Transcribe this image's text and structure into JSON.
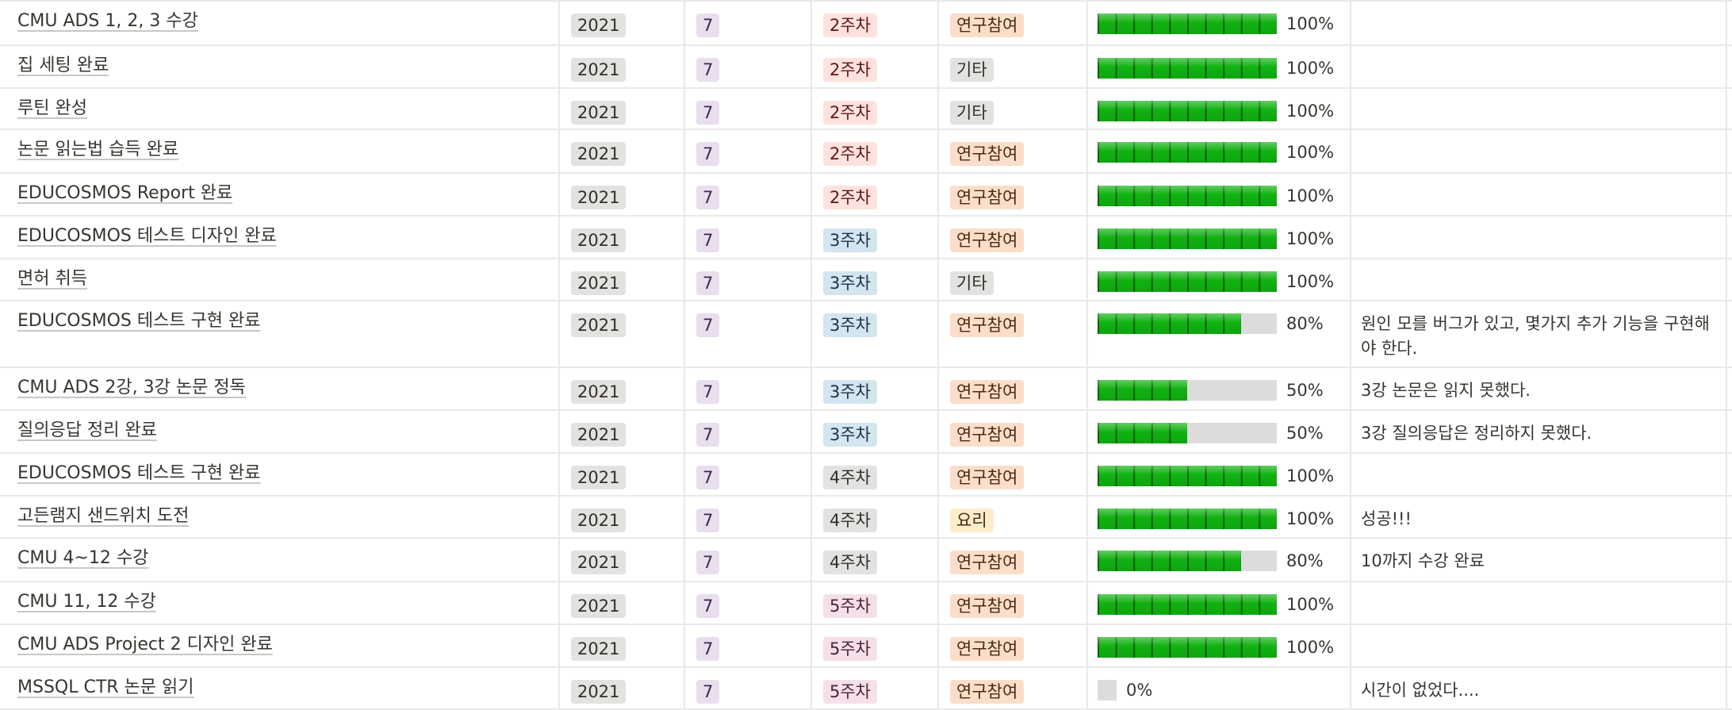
{
  "table": {
    "rows": [
      {
        "name": "CMU ADS 1, 2, 3 수강",
        "year": "2021",
        "month": "7",
        "week": "2주차",
        "category": "연구참여",
        "progress": 100,
        "progress_label": "100%",
        "memo": ""
      },
      {
        "name": "집 세팅 완료",
        "year": "2021",
        "month": "7",
        "week": "2주차",
        "category": "기타",
        "progress": 100,
        "progress_label": "100%",
        "memo": ""
      },
      {
        "name": "루틴 완성",
        "year": "2021",
        "month": "7",
        "week": "2주차",
        "category": "기타",
        "progress": 100,
        "progress_label": "100%",
        "memo": ""
      },
      {
        "name": "논문 읽는법 습득 완료",
        "year": "2021",
        "month": "7",
        "week": "2주차",
        "category": "연구참여",
        "progress": 100,
        "progress_label": "100%",
        "memo": ""
      },
      {
        "name": "EDUCOSMOS Report 완료",
        "year": "2021",
        "month": "7",
        "week": "2주차",
        "category": "연구참여",
        "progress": 100,
        "progress_label": "100%",
        "memo": ""
      },
      {
        "name": "EDUCOSMOS 테스트 디자인 완료",
        "year": "2021",
        "month": "7",
        "week": "3주차",
        "category": "연구참여",
        "progress": 100,
        "progress_label": "100%",
        "memo": ""
      },
      {
        "name": "면허 취득",
        "year": "2021",
        "month": "7",
        "week": "3주차",
        "category": "기타",
        "progress": 100,
        "progress_label": "100%",
        "memo": ""
      },
      {
        "name": "EDUCOSMOS 테스트 구현 완료",
        "year": "2021",
        "month": "7",
        "week": "3주차",
        "category": "연구참여",
        "progress": 80,
        "progress_label": "80%",
        "memo": "원인 모를 버그가 있고, 몇가지 추가 기능을 구현해야 한다."
      },
      {
        "name": "CMU ADS 2강, 3강 논문 정독",
        "year": "2021",
        "month": "7",
        "week": "3주차",
        "category": "연구참여",
        "progress": 50,
        "progress_label": "50%",
        "memo": "3강 논문은 읽지 못했다."
      },
      {
        "name": "질의응답 정리 완료",
        "year": "2021",
        "month": "7",
        "week": "3주차",
        "category": "연구참여",
        "progress": 50,
        "progress_label": "50%",
        "memo": "3강 질의응답은 정리하지 못했다."
      },
      {
        "name": "EDUCOSMOS 테스트 구현 완료",
        "year": "2021",
        "month": "7",
        "week": "4주차",
        "category": "연구참여",
        "progress": 100,
        "progress_label": "100%",
        "memo": ""
      },
      {
        "name": "고든램지 샌드위치 도전",
        "year": "2021",
        "month": "7",
        "week": "4주차",
        "category": "요리",
        "progress": 100,
        "progress_label": "100%",
        "memo": "성공!!!"
      },
      {
        "name": "CMU 4~12 수강",
        "year": "2021",
        "month": "7",
        "week": "4주차",
        "category": "연구참여",
        "progress": 80,
        "progress_label": "80%",
        "memo": "10까지 수강 완료"
      },
      {
        "name": "CMU 11, 12 수강",
        "year": "2021",
        "month": "7",
        "week": "5주차",
        "category": "연구참여",
        "progress": 100,
        "progress_label": "100%",
        "memo": ""
      },
      {
        "name": "CMU ADS Project 2 디자인 완료",
        "year": "2021",
        "month": "7",
        "week": "5주차",
        "category": "연구참여",
        "progress": 100,
        "progress_label": "100%",
        "memo": ""
      },
      {
        "name": "MSSQL CTR 논문 읽기",
        "year": "2021",
        "month": "7",
        "week": "5주차",
        "category": "연구참여",
        "progress": 0,
        "progress_label": "0%",
        "memo": "시간이 없었다...."
      }
    ]
  },
  "colors": {
    "progress_fill": "#10b210",
    "progress_track": "#dcdcdc",
    "grid_line": "#e9e9e7"
  }
}
